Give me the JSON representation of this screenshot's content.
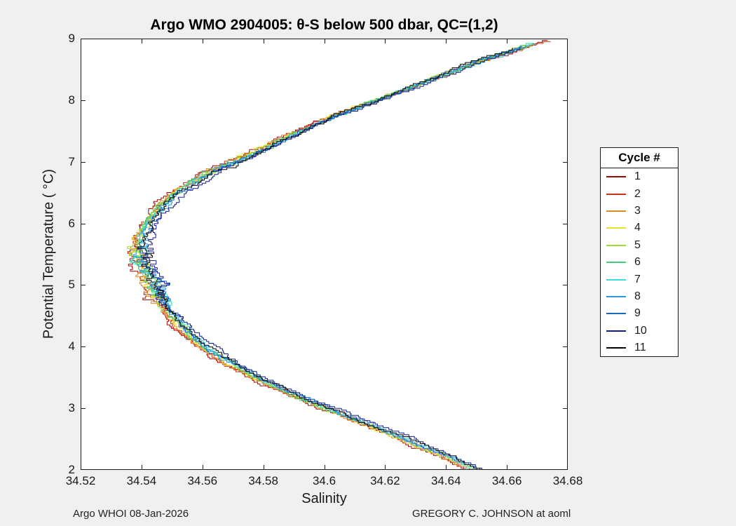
{
  "chart_data": {
    "type": "line",
    "title": "Argo WMO 2904005: θ-S below 500 dbar,  QC=(1,2)",
    "xlabel": "Salinity",
    "ylabel": "Potential Temperature ( °C)",
    "xlim": [
      34.52,
      34.68
    ],
    "ylim": [
      2,
      9
    ],
    "xticks": [
      34.52,
      34.54,
      34.56,
      34.58,
      34.6,
      34.62,
      34.64,
      34.66,
      34.68
    ],
    "xtick_labels": [
      "34.52",
      "34.54",
      "34.56",
      "34.58",
      "34.6",
      "34.62",
      "34.64",
      "34.66",
      "34.68"
    ],
    "yticks": [
      2,
      3,
      4,
      5,
      6,
      7,
      8,
      9
    ],
    "ytick_labels": [
      "2",
      "3",
      "4",
      "5",
      "6",
      "7",
      "8",
      "9"
    ],
    "grid": false,
    "legend_title": "Cycle #",
    "legend_position": "right-outside",
    "backbone_profile": {
      "theta": [
        9.0,
        8.8,
        8.6,
        8.4,
        8.2,
        8.0,
        7.8,
        7.6,
        7.4,
        7.2,
        7.0,
        6.8,
        6.6,
        6.4,
        6.2,
        6.0,
        5.8,
        5.6,
        5.4,
        5.2,
        5.0,
        4.8,
        4.6,
        4.4,
        4.2,
        4.0,
        3.8,
        3.6,
        3.4,
        3.2,
        3.0,
        2.8,
        2.6,
        2.4,
        2.2,
        2.0
      ],
      "salinity": [
        34.674,
        34.662,
        34.65,
        34.639,
        34.629,
        34.618,
        34.607,
        34.597,
        34.588,
        34.58,
        34.571,
        34.562,
        34.555,
        34.549,
        34.545,
        34.542,
        34.54,
        34.539,
        34.539,
        34.541,
        34.543,
        34.545,
        34.548,
        34.551,
        34.555,
        34.56,
        34.566,
        34.573,
        34.581,
        34.59,
        34.6,
        34.61,
        34.62,
        34.63,
        34.64,
        34.649
      ]
    },
    "series": [
      {
        "label": "1",
        "color": "#a00505",
        "seed": 11,
        "salinity_offset": -0.0018,
        "top_offset": 0.003,
        "theta_top": 8.97
      },
      {
        "label": "2",
        "color": "#d03318",
        "seed": 22,
        "salinity_offset": -0.0008,
        "top_offset": 0.004,
        "theta_top": 8.95
      },
      {
        "label": "3",
        "color": "#dd8a1e",
        "seed": 33,
        "salinity_offset": -0.0012,
        "top_offset": 0.002,
        "theta_top": 8.9
      },
      {
        "label": "4",
        "color": "#ede12a",
        "seed": 44,
        "salinity_offset": -0.0005,
        "top_offset": 0.0,
        "theta_top": 8.88
      },
      {
        "label": "5",
        "color": "#9fdc2e",
        "seed": 55,
        "salinity_offset": 0.0,
        "top_offset": 0.001,
        "theta_top": 8.9
      },
      {
        "label": "6",
        "color": "#3ecf7e",
        "seed": 66,
        "salinity_offset": 0.0005,
        "top_offset": 0.0,
        "theta_top": 8.92
      },
      {
        "label": "7",
        "color": "#3addda",
        "seed": 77,
        "salinity_offset": 0.0008,
        "top_offset": 0.001,
        "theta_top": 8.9
      },
      {
        "label": "8",
        "color": "#289adc",
        "seed": 88,
        "salinity_offset": 0.001,
        "top_offset": -0.001,
        "theta_top": 8.88
      },
      {
        "label": "9",
        "color": "#2063c8",
        "seed": 99,
        "salinity_offset": 0.0013,
        "top_offset": -0.002,
        "theta_top": 8.87
      },
      {
        "label": "10",
        "color": "#141c8c",
        "seed": 110,
        "salinity_offset": 0.0028,
        "top_offset": -0.002,
        "theta_top": 8.85
      },
      {
        "label": "11",
        "color": "#000000",
        "seed": 121,
        "salinity_offset": 0.0015,
        "top_offset": -0.003,
        "theta_top": 8.84
      }
    ]
  },
  "footer": {
    "left": "Argo WHOI 08-Jan-2026",
    "right": "GREGORY C. JOHNSON at aoml"
  }
}
